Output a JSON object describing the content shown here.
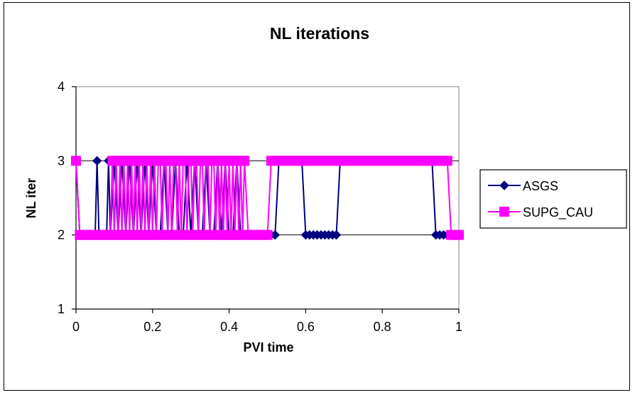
{
  "chart_data": {
    "type": "line",
    "title": "NL iterations",
    "xlabel": "PVI time",
    "ylabel": "NL iter",
    "xlim": [
      0,
      1
    ],
    "ylim": [
      1,
      4
    ],
    "xticks": [
      "0",
      "0.2",
      "0.4",
      "0.6",
      "0.8",
      "1"
    ],
    "yticks": [
      "1",
      "2",
      "3",
      "4"
    ],
    "grid": "horizontal",
    "legend_position": "right",
    "series": [
      {
        "name": "ASGS",
        "color": "#000080",
        "marker": "diamond",
        "x": [
          0.0,
          0.01,
          0.02,
          0.03,
          0.04,
          0.05,
          0.055,
          0.06,
          0.07,
          0.08,
          0.085,
          0.09,
          0.1,
          0.11,
          0.12,
          0.13,
          0.14,
          0.15,
          0.16,
          0.17,
          0.18,
          0.19,
          0.2,
          0.21,
          0.22,
          0.23,
          0.24,
          0.25,
          0.26,
          0.27,
          0.28,
          0.29,
          0.3,
          0.31,
          0.32,
          0.33,
          0.34,
          0.35,
          0.36,
          0.37,
          0.38,
          0.39,
          0.4,
          0.41,
          0.42,
          0.43,
          0.44,
          0.45,
          0.46,
          0.47,
          0.48,
          0.49,
          0.5,
          0.51,
          0.52,
          0.53,
          0.59,
          0.6,
          0.61,
          0.62,
          0.63,
          0.64,
          0.65,
          0.66,
          0.67,
          0.68,
          0.69,
          0.93,
          0.94,
          0.95,
          0.96,
          0.97,
          0.98,
          0.99,
          1.0
        ],
        "y": [
          3,
          2,
          2,
          2,
          2,
          2,
          3,
          2,
          2,
          2,
          3,
          2,
          3,
          2,
          3,
          2,
          3,
          2,
          3,
          2,
          3,
          2,
          3,
          2,
          2,
          3,
          2,
          2,
          3,
          2,
          2,
          3,
          2,
          3,
          2,
          2,
          3,
          2,
          2,
          3,
          2,
          3,
          2,
          2,
          3,
          2,
          2,
          2,
          2,
          2,
          2,
          2,
          2,
          2,
          2,
          3,
          3,
          2,
          2,
          2,
          2,
          2,
          2,
          2,
          2,
          2,
          3,
          3,
          2,
          2,
          2,
          2,
          2,
          2,
          2
        ]
      },
      {
        "name": "SUPG_CAU",
        "color": "#FF00FF",
        "marker": "square",
        "x": [
          0.0,
          0.01,
          0.02,
          0.03,
          0.04,
          0.05,
          0.06,
          0.07,
          0.08,
          0.09,
          0.095,
          0.1,
          0.105,
          0.11,
          0.115,
          0.12,
          0.125,
          0.13,
          0.135,
          0.14,
          0.145,
          0.15,
          0.155,
          0.16,
          0.165,
          0.17,
          0.175,
          0.18,
          0.185,
          0.19,
          0.195,
          0.2,
          0.205,
          0.21,
          0.215,
          0.22,
          0.225,
          0.23,
          0.235,
          0.24,
          0.245,
          0.25,
          0.255,
          0.26,
          0.265,
          0.27,
          0.275,
          0.28,
          0.285,
          0.29,
          0.295,
          0.3,
          0.305,
          0.31,
          0.315,
          0.32,
          0.325,
          0.33,
          0.335,
          0.34,
          0.345,
          0.35,
          0.355,
          0.36,
          0.365,
          0.37,
          0.375,
          0.38,
          0.385,
          0.39,
          0.395,
          0.4,
          0.405,
          0.41,
          0.415,
          0.42,
          0.425,
          0.43,
          0.435,
          0.44,
          0.45,
          0.46,
          0.47,
          0.48,
          0.49,
          0.5,
          0.51,
          0.52,
          0.53,
          0.54,
          0.55,
          0.56,
          0.57,
          0.58,
          0.59,
          0.6,
          0.61,
          0.62,
          0.63,
          0.64,
          0.65,
          0.66,
          0.67,
          0.68,
          0.69,
          0.7,
          0.71,
          0.72,
          0.73,
          0.74,
          0.75,
          0.76,
          0.77,
          0.78,
          0.79,
          0.8,
          0.81,
          0.82,
          0.83,
          0.84,
          0.85,
          0.86,
          0.87,
          0.88,
          0.89,
          0.9,
          0.91,
          0.92,
          0.93,
          0.94,
          0.95,
          0.96,
          0.97,
          0.98,
          0.99,
          1.0
        ],
        "y": [
          3,
          2,
          2,
          2,
          2,
          2,
          2,
          2,
          2,
          2,
          3,
          2,
          3,
          2,
          3,
          2,
          3,
          2,
          3,
          2,
          3,
          2,
          3,
          2,
          3,
          2,
          3,
          2,
          3,
          2,
          3,
          2,
          3,
          2,
          3,
          3,
          2,
          3,
          3,
          2,
          3,
          2,
          3,
          3,
          2,
          3,
          2,
          3,
          3,
          2,
          3,
          3,
          2,
          3,
          3,
          2,
          3,
          3,
          2,
          3,
          3,
          2,
          3,
          3,
          2,
          3,
          2,
          3,
          2,
          3,
          2,
          3,
          2,
          3,
          2,
          3,
          2,
          3,
          2,
          3,
          2,
          2,
          2,
          2,
          2,
          2,
          3,
          3,
          3,
          3,
          3,
          3,
          3,
          3,
          3,
          3,
          3,
          3,
          3,
          3,
          3,
          3,
          3,
          3,
          3,
          3,
          3,
          3,
          3,
          3,
          3,
          3,
          3,
          3,
          3,
          3,
          3,
          3,
          3,
          3,
          3,
          3,
          3,
          3,
          3,
          3,
          3,
          3,
          3,
          3,
          3,
          3,
          3,
          2,
          2,
          2
        ]
      }
    ]
  }
}
